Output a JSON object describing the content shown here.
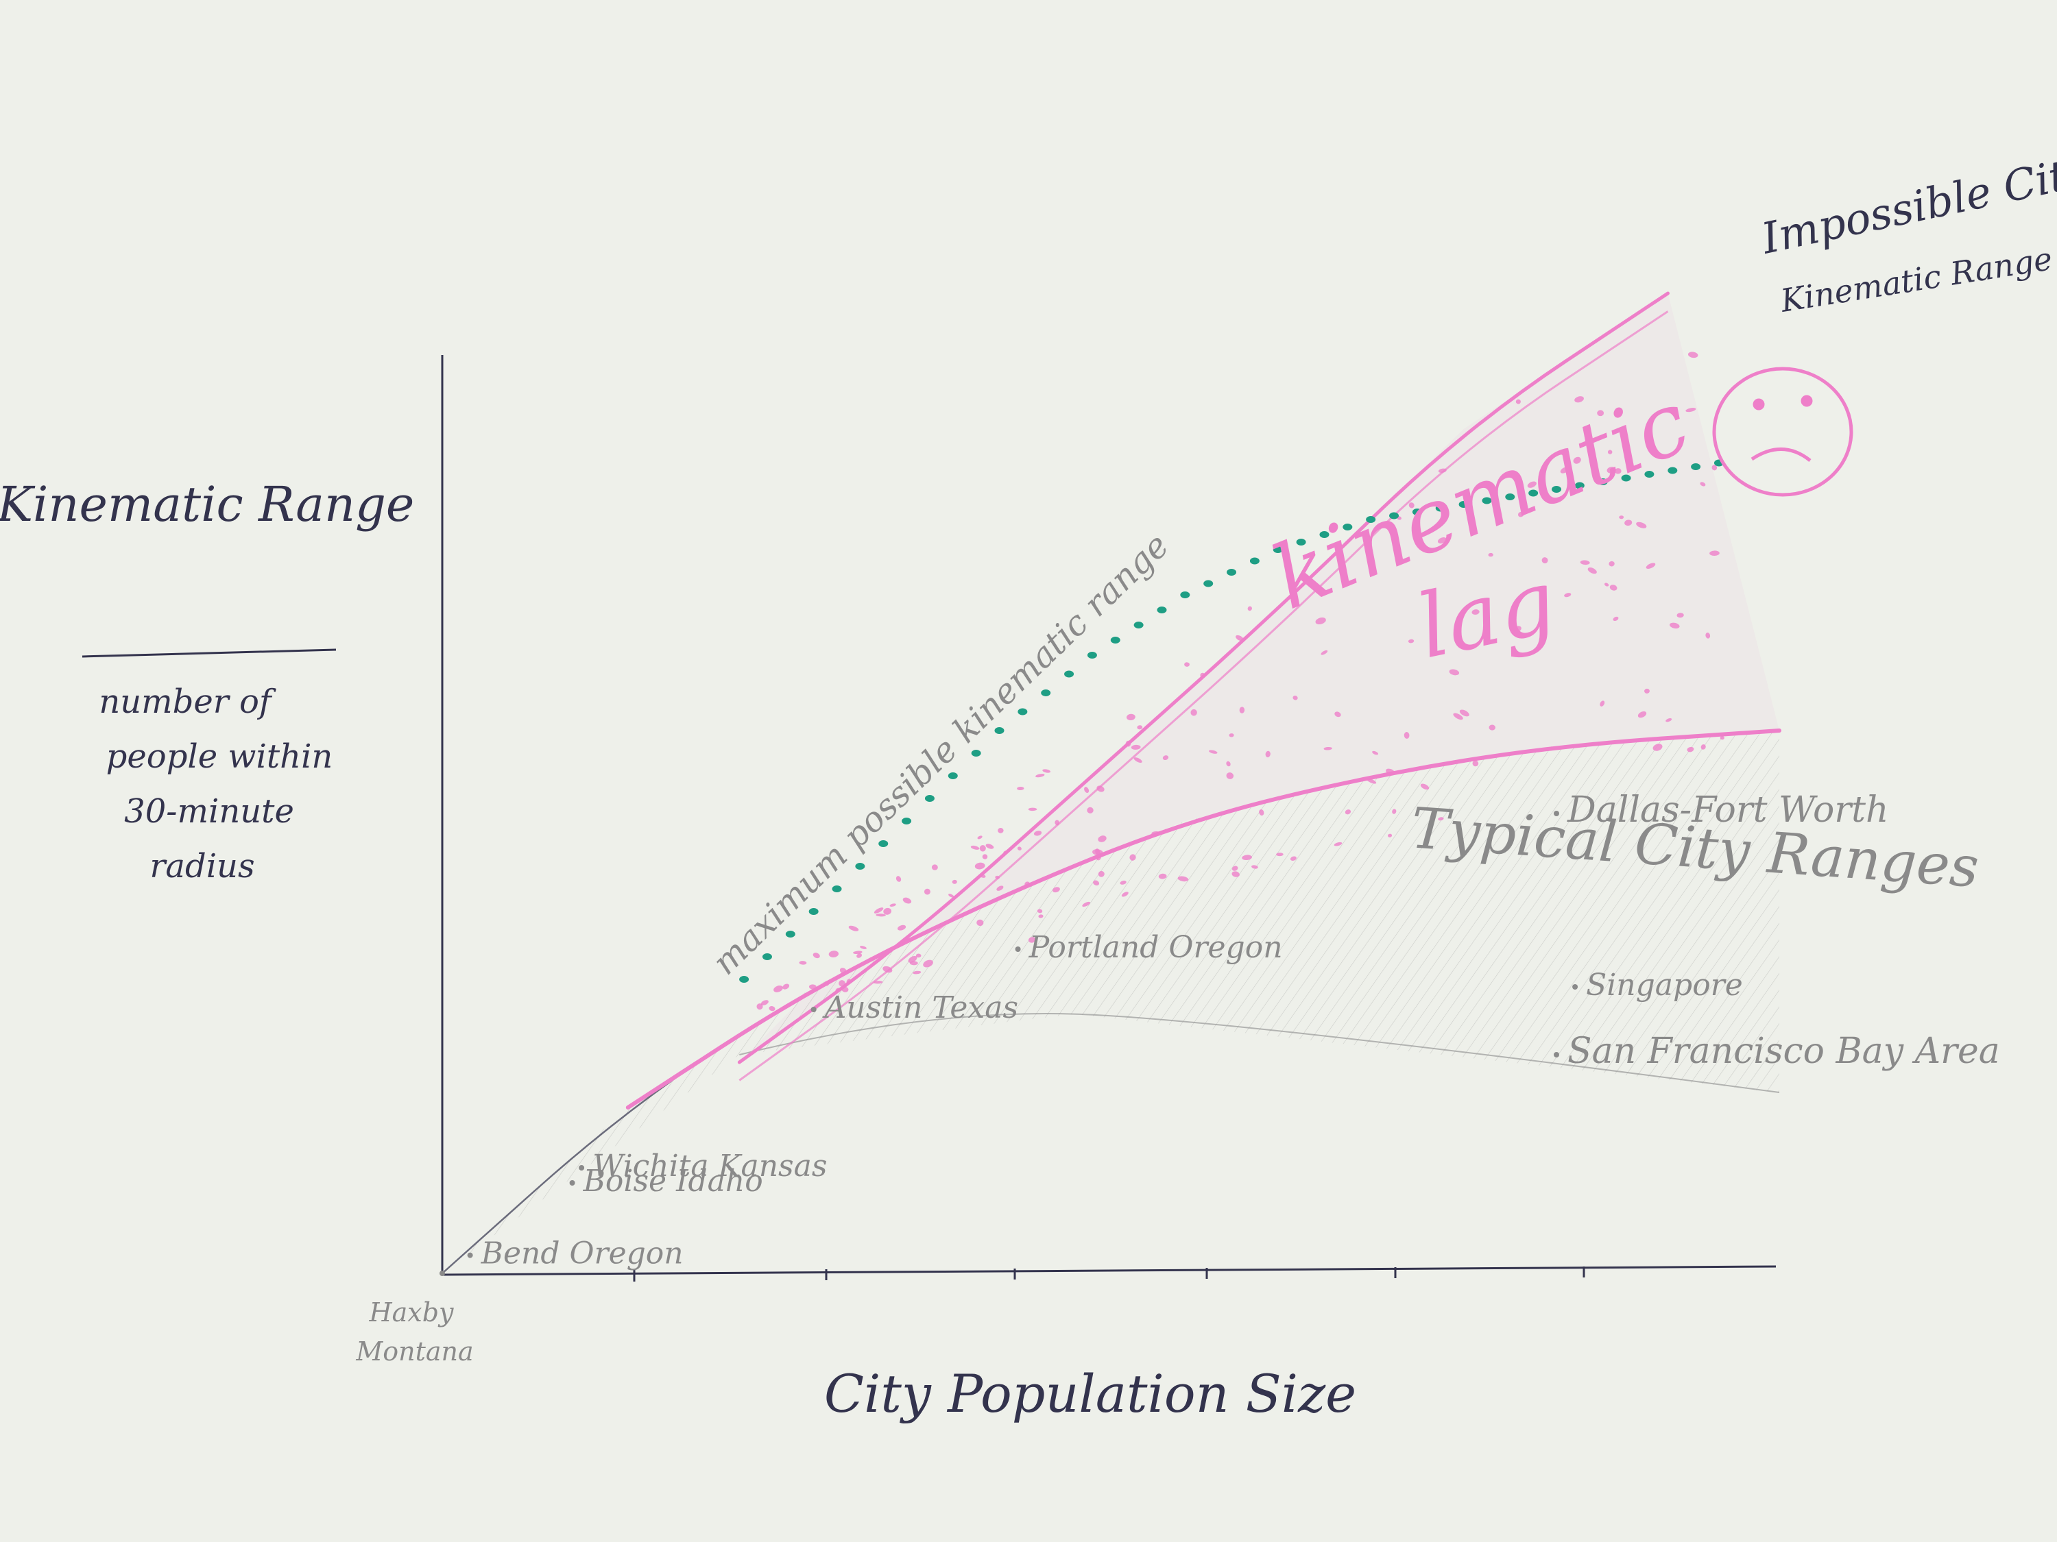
{
  "chart_data": {
    "type": "line",
    "xlabel": "City Population Size",
    "ylabel": "Kinematic Range",
    "ylabel_note_lines": [
      "number of",
      "people within",
      "30-minute",
      "radius"
    ],
    "grid": false,
    "legend": "none",
    "series": [
      {
        "name": "maximum possible kinematic range",
        "style": "teal-dotted",
        "x": [
          0.0,
          0.5,
          1.0,
          1.5,
          2.0,
          2.5,
          3.0,
          3.5,
          4.0,
          4.5,
          5.0,
          5.5,
          6.0,
          6.5,
          7.0
        ],
        "y": [
          0.0,
          0.6,
          1.2,
          1.8,
          2.4,
          3.0,
          3.6,
          4.1,
          4.5,
          4.8,
          5.0,
          5.1,
          5.2,
          5.3,
          5.4
        ]
      },
      {
        "name": "Impossible City",
        "style": "pink",
        "x": [
          1.6,
          2.5,
          3.5,
          4.5,
          5.5,
          6.6
        ],
        "y": [
          1.4,
          2.2,
          3.3,
          4.4,
          5.6,
          6.5
        ]
      },
      {
        "name": "Typical City Ranges",
        "style": "pink-lower-bound",
        "x": [
          0.0,
          1.0,
          2.0,
          3.0,
          4.0,
          5.0,
          6.0,
          7.2
        ],
        "y": [
          0.0,
          1.1,
          1.9,
          2.5,
          3.0,
          3.3,
          3.5,
          3.6
        ]
      }
    ],
    "cities": [
      {
        "name": "Haxby Montana",
        "x": 0.0,
        "y": 0.0
      },
      {
        "name": "Bend Oregon",
        "x": 0.15,
        "y": 0.12
      },
      {
        "name": "Boise Idaho",
        "x": 0.7,
        "y": 0.6
      },
      {
        "name": "Wichita Kansas",
        "x": 0.75,
        "y": 0.7
      },
      {
        "name": "Austin Texas",
        "x": 2.0,
        "y": 1.75
      },
      {
        "name": "Portland Oregon",
        "x": 3.1,
        "y": 2.15
      },
      {
        "name": "Dallas-Fort Worth",
        "x": 6.0,
        "y": 3.05
      },
      {
        "name": "Singapore",
        "x": 6.1,
        "y": 1.9
      },
      {
        "name": "San Francisco Bay Area",
        "x": 6.0,
        "y": 1.45
      }
    ],
    "annotations": {
      "y_title": "Kinematic Range",
      "x_title": "City Population Size",
      "max_curve": "maximum possible kinematic range",
      "lag_line1": "kinematic",
      "lag_line2": "lag",
      "typical": "Typical City Ranges",
      "impossible_line1": "Impossible City",
      "impossible_line2": "Kinematic Range",
      "origin_line1": "Haxby",
      "origin_line2": "Montana"
    },
    "xlim": [
      0,
      7.2
    ],
    "ylim": [
      0,
      6.0
    ],
    "colors": {
      "paper": "#eef0ea",
      "ink": "#33334d",
      "pencil": "#8a8a8a",
      "pink": "#ee7fc9",
      "teal": "#1e9e84"
    }
  }
}
